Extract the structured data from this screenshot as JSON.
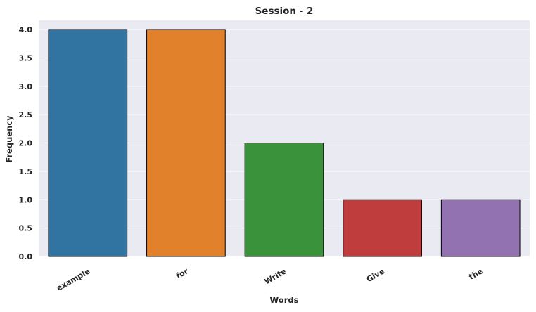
{
  "chart_data": {
    "type": "bar",
    "title": "Session - 2",
    "xlabel": "Words",
    "ylabel": "Frequency",
    "categories": [
      "example",
      "for",
      "Write",
      "Give",
      "the"
    ],
    "values": [
      4,
      4,
      2,
      1,
      1
    ],
    "colors": [
      "#3274a1",
      "#e1812c",
      "#3a923a",
      "#c03d3e",
      "#9372b2"
    ],
    "ylim": [
      0,
      4.0
    ],
    "yticks": [
      "0.0",
      "0.5",
      "1.0",
      "1.5",
      "2.0",
      "2.5",
      "3.0",
      "3.5",
      "4.0"
    ],
    "grid": true,
    "background": "#eaeaf2",
    "bar_edge_color": "#000000",
    "legend": "none"
  }
}
